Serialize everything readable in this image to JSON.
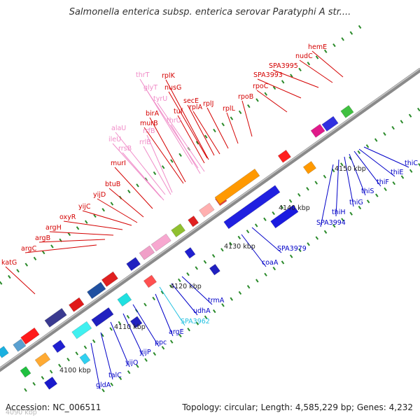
{
  "title": "Salmonella enterica subsp. enterica serovar Paratyphi A str....",
  "footer": {
    "accession": "Accession: NC_006511",
    "stats": "Topology: circular; Length: 4,585,229 bp; Genes: 4,232"
  },
  "colors": {
    "backbone": "#8c8c8c",
    "label_red": "#d40000",
    "label_pink": "#f08cc8",
    "label_blue": "#0000c8",
    "label_cyan": "#20c0e0",
    "tick_green": "#2a8a2a"
  },
  "scale_labels": [
    "4090 kbp",
    "4100 kbp",
    "4110 kbp",
    "4120 kbp",
    "4130 kbp",
    "4140 kbp",
    "4150 kbp"
  ],
  "gene_labels_upper": [
    {
      "text": "hemE",
      "color": "label_red"
    },
    {
      "text": "nudC",
      "color": "label_red"
    },
    {
      "text": "SPA3995",
      "color": "label_red"
    },
    {
      "text": "SPA3993",
      "color": "label_red"
    },
    {
      "text": "rpoC",
      "color": "label_red"
    },
    {
      "text": "rpoB",
      "color": "label_red"
    },
    {
      "text": "rplL",
      "color": "label_red"
    },
    {
      "text": "rplJ",
      "color": "label_red"
    },
    {
      "text": "rplA",
      "color": "label_red"
    },
    {
      "text": "secE",
      "color": "label_red"
    },
    {
      "text": "tuf",
      "color": "label_red"
    },
    {
      "text": "rplK",
      "color": "label_red"
    },
    {
      "text": "nusG",
      "color": "label_red"
    },
    {
      "text": "thrT",
      "color": "label_pink"
    },
    {
      "text": "glyT",
      "color": "label_pink"
    },
    {
      "text": "tyrU",
      "color": "label_pink"
    },
    {
      "text": "thrU",
      "color": "label_pink"
    },
    {
      "text": "birA",
      "color": "label_red"
    },
    {
      "text": "murB",
      "color": "label_red"
    },
    {
      "text": "alaU",
      "color": "label_pink"
    },
    {
      "text": "rrfB",
      "color": "label_pink"
    },
    {
      "text": "ileU",
      "color": "label_pink"
    },
    {
      "text": "rrlB",
      "color": "label_pink"
    },
    {
      "text": "rrsB",
      "color": "label_pink"
    },
    {
      "text": "murI",
      "color": "label_red"
    },
    {
      "text": "btuB",
      "color": "label_red"
    },
    {
      "text": "yijD",
      "color": "label_red"
    },
    {
      "text": "yijC",
      "color": "label_red"
    },
    {
      "text": "oxyR",
      "color": "label_red"
    },
    {
      "text": "argH",
      "color": "label_red"
    },
    {
      "text": "argB",
      "color": "label_red"
    },
    {
      "text": "argC",
      "color": "label_red"
    },
    {
      "text": "katG",
      "color": "label_red"
    }
  ],
  "gene_labels_lower": [
    {
      "text": "thiC",
      "color": "label_blue"
    },
    {
      "text": "thiE",
      "color": "label_blue"
    },
    {
      "text": "thiF",
      "color": "label_blue"
    },
    {
      "text": "thiS",
      "color": "label_blue"
    },
    {
      "text": "thiG",
      "color": "label_blue"
    },
    {
      "text": "thiH",
      "color": "label_blue"
    },
    {
      "text": "SPA3994",
      "color": "label_blue"
    },
    {
      "text": "SPA3979",
      "color": "label_blue"
    },
    {
      "text": "coaA",
      "color": "label_blue"
    },
    {
      "text": "trmA",
      "color": "label_blue"
    },
    {
      "text": "udhA",
      "color": "label_blue"
    },
    {
      "text": "SPA3962",
      "color": "label_cyan"
    },
    {
      "text": "argE",
      "color": "label_blue"
    },
    {
      "text": "ppc",
      "color": "label_blue"
    },
    {
      "text": "yijP",
      "color": "label_blue"
    },
    {
      "text": "yijO",
      "color": "label_blue"
    },
    {
      "text": "talC",
      "color": "label_blue"
    },
    {
      "text": "gldA",
      "color": "label_blue"
    }
  ]
}
